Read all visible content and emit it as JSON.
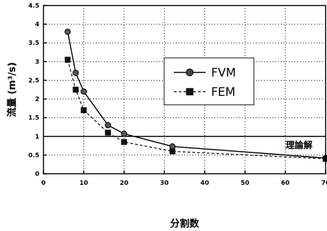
{
  "chart_data": {
    "type": "line",
    "title": "",
    "xlabel": "分割数",
    "ylabel": "流量 (m³/s)",
    "xlim": [
      0,
      70
    ],
    "ylim": [
      0,
      4.5
    ],
    "x_ticks": [
      0,
      10,
      20,
      30,
      40,
      50,
      60,
      70
    ],
    "x_tick_labels": [
      "0",
      "10",
      "20",
      "30",
      "40",
      "50",
      "60",
      "70"
    ],
    "y_ticks": [
      0,
      0.5,
      1.0,
      1.5,
      2.0,
      2.5,
      3.0,
      3.5,
      4.0,
      4.5
    ],
    "y_tick_labels": [
      "0",
      "0.5",
      "1",
      "1.5",
      "2",
      "2.5",
      "3",
      "3.5",
      "4",
      "4.5"
    ],
    "grid": true,
    "legend_position": "center-right",
    "series": [
      {
        "name": "FVM",
        "marker": "circle",
        "line_style": "solid",
        "x": [
          6,
          8,
          10,
          16,
          20,
          32,
          70
        ],
        "y": [
          3.8,
          2.7,
          2.2,
          1.3,
          1.07,
          0.73,
          0.42
        ]
      },
      {
        "name": "FEM",
        "marker": "square",
        "line_style": "dashed",
        "x": [
          6,
          8,
          10,
          16,
          20,
          32,
          70
        ],
        "y": [
          3.05,
          2.25,
          1.7,
          1.1,
          0.85,
          0.6,
          0.4
        ]
      }
    ],
    "reference_line": {
      "y": 1.0,
      "label": "理論解"
    }
  },
  "colors": {
    "line": "#000000",
    "background": "#ffffff",
    "grid": "#000000"
  }
}
